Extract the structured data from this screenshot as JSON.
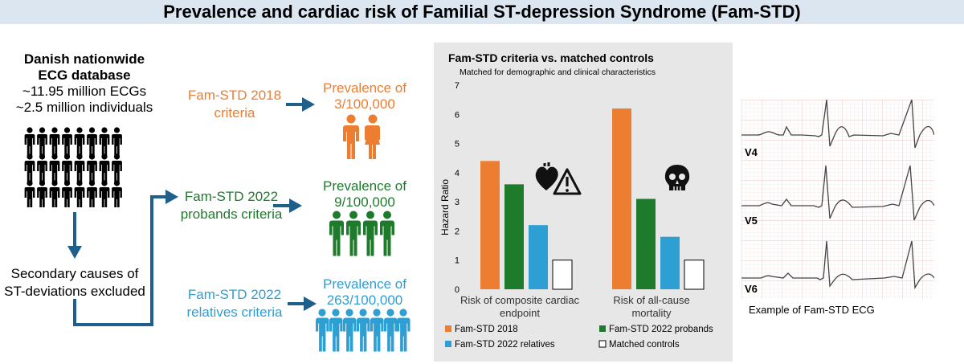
{
  "header": {
    "title": "Prevalence and cardiac risk of Familial ST-depression Syndrome (Fam-STD)"
  },
  "database": {
    "title_line1": "Danish nationwide",
    "title_line2": "ECG database",
    "ecgs": "~11.95 million ECGs",
    "individuals": "~2.5 million individuals"
  },
  "exclusion": {
    "line1": "Secondary causes of",
    "line2": "ST-deviations excluded"
  },
  "criteria": [
    {
      "line1": "Fam-STD 2018",
      "line2": "criteria",
      "prev_label": "Prevalence of",
      "prev_value": "3/100,000",
      "color": "#ed7d31"
    },
    {
      "line1": "Fam-STD 2022",
      "line2": "probands criteria",
      "prev_label": "Prevalence of",
      "prev_value": "9/100,000",
      "color": "#1e7b2c"
    },
    {
      "line1": "Fam-STD 2022",
      "line2": "relatives criteria",
      "prev_label": "Prevalence of",
      "prev_value": "263/100,000",
      "color": "#2e9fd3"
    }
  ],
  "colors": {
    "orange": "#ed7d31",
    "green": "#1e7b2c",
    "blue": "#2e9fd3",
    "arrow": "#1f5f8b",
    "header_bg": "#dce6f1"
  },
  "chart_data": {
    "type": "bar",
    "title": "Fam-STD criteria vs. matched controls",
    "subtitle": "Matched for demographic and clinical characteristics",
    "ylabel": "Hazard Ratio",
    "ylim": [
      0,
      7
    ],
    "yticks": [
      0,
      1,
      2,
      3,
      4,
      5,
      6,
      7
    ],
    "categories": [
      "Risk of composite cardiac endpoint",
      "Risk of all-cause mortality"
    ],
    "category_lines": [
      [
        "Risk of composite cardiac",
        "endpoint"
      ],
      [
        "Risk of all-cause",
        "mortality"
      ]
    ],
    "series": [
      {
        "name": "Fam-STD 2018",
        "values": [
          4.4,
          6.2
        ],
        "color": "#ed7d31"
      },
      {
        "name": "Fam-STD 2022 probands",
        "values": [
          3.6,
          3.1
        ],
        "color": "#1e7b2c"
      },
      {
        "name": "Fam-STD 2022 relatives",
        "values": [
          2.2,
          1.8
        ],
        "color": "#2e9fd3"
      },
      {
        "name": "Matched controls",
        "values": [
          1.0,
          1.0
        ],
        "color": "#ffffff"
      }
    ],
    "icons": [
      "heart-warning-icon",
      "skull-icon"
    ],
    "legend": "bottom"
  },
  "ecg": {
    "leads": [
      "V4",
      "V5",
      "V6"
    ],
    "caption": "Example of Fam-STD ECG"
  }
}
